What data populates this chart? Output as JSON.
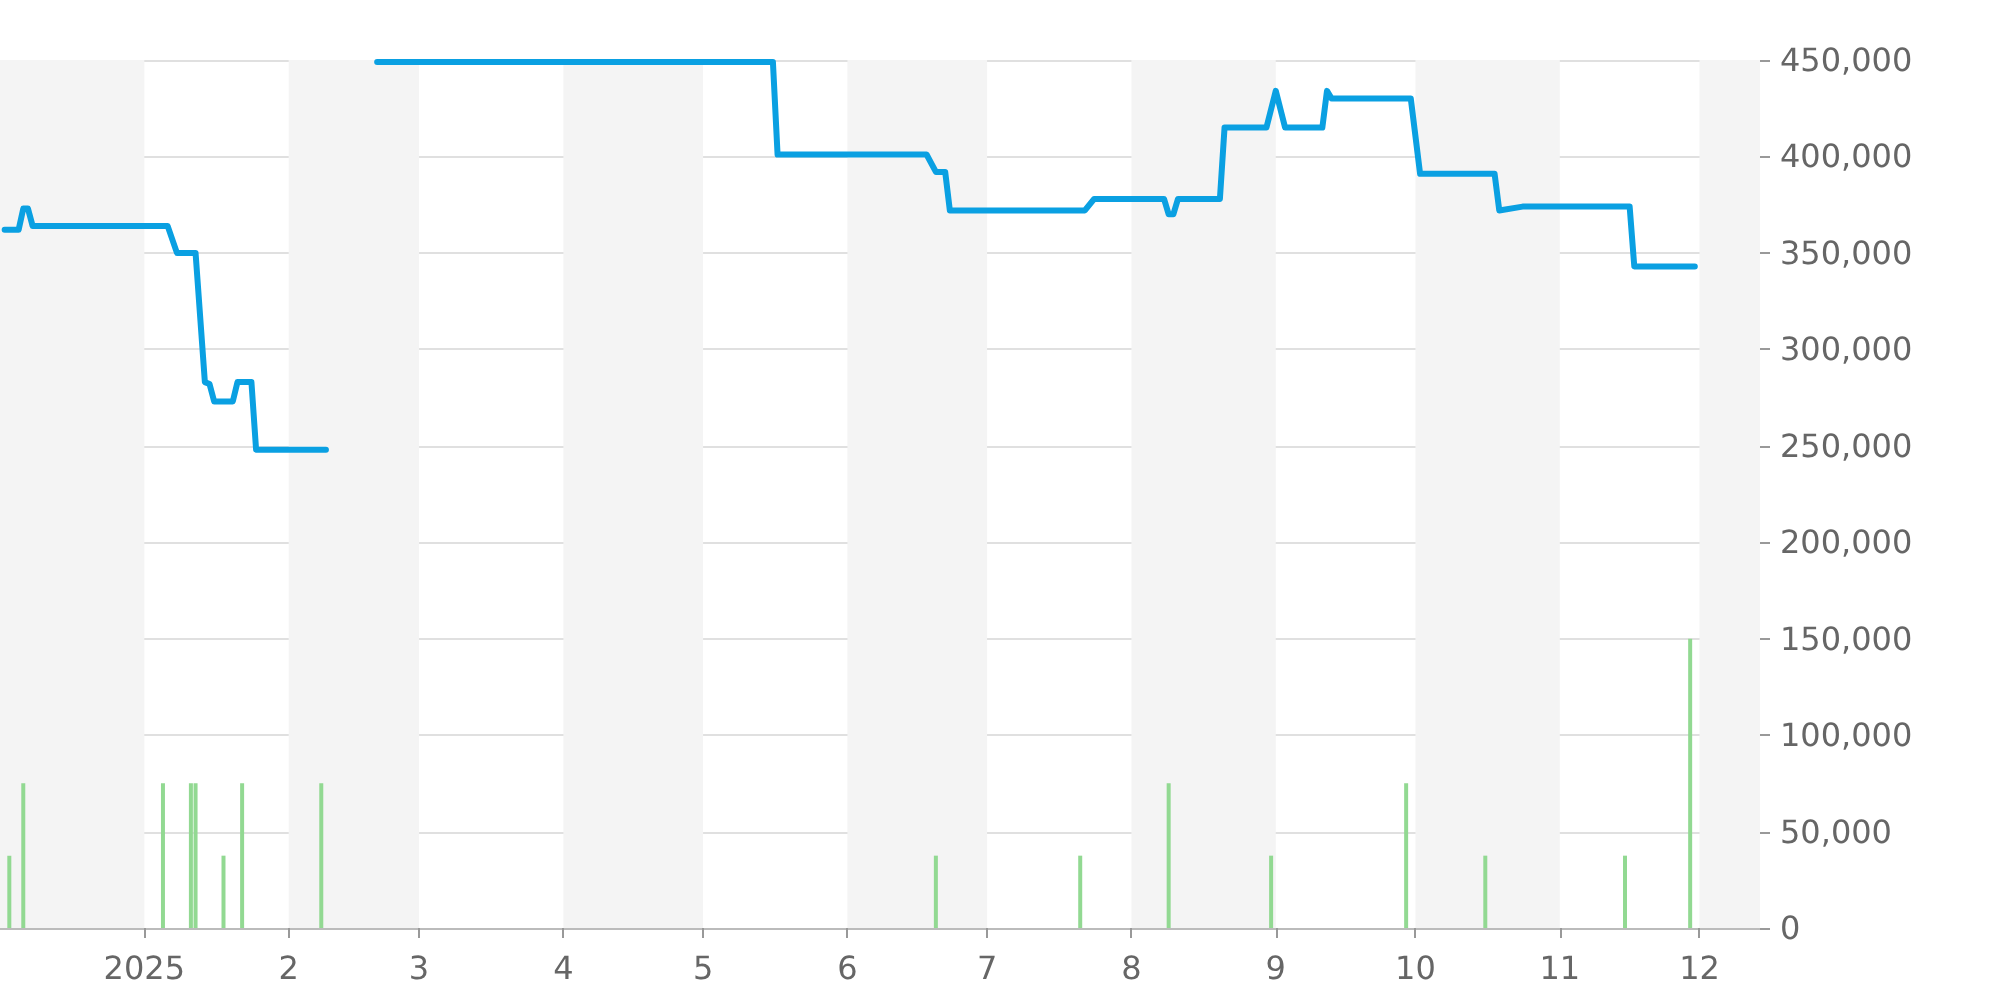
{
  "chart_data": {
    "type": "line",
    "xlim": [
      "2024-12-01",
      "2025-12-14"
    ],
    "xticks": [
      {
        "value": "2025-01-01",
        "label": "2025"
      },
      {
        "value": "2025-02-01",
        "label": "2"
      },
      {
        "value": "2025-03-01",
        "label": "3"
      },
      {
        "value": "2025-04-01",
        "label": "4"
      },
      {
        "value": "2025-05-01",
        "label": "5"
      },
      {
        "value": "2025-06-01",
        "label": "6"
      },
      {
        "value": "2025-07-01",
        "label": "7"
      },
      {
        "value": "2025-08-01",
        "label": "8"
      },
      {
        "value": "2025-09-01",
        "label": "9"
      },
      {
        "value": "2025-10-01",
        "label": "10"
      },
      {
        "value": "2025-11-01",
        "label": "11"
      },
      {
        "value": "2025-12-01",
        "label": "12"
      }
    ],
    "ylim": [
      0,
      450000
    ],
    "yticks": [
      {
        "value": 0,
        "label": "0"
      },
      {
        "value": 50000,
        "label": "50,000"
      },
      {
        "value": 100000,
        "label": "100,000"
      },
      {
        "value": 150000,
        "label": "150,000"
      },
      {
        "value": 200000,
        "label": "200,000"
      },
      {
        "value": 250000,
        "label": "250,000"
      },
      {
        "value": 300000,
        "label": "300,000"
      },
      {
        "value": 350000,
        "label": "350,000"
      },
      {
        "value": 400000,
        "label": "400,000"
      },
      {
        "value": 450000,
        "label": "450,000"
      }
    ],
    "grid": "y",
    "marker": "none",
    "line_style": "solid",
    "series": [
      {
        "color": "#0aa0e2",
        "x": [
          "2024-12-02",
          "2024-12-05",
          "2024-12-06",
          "2024-12-07",
          "2024-12-08",
          "2025-01-06",
          "2025-01-08",
          "2025-01-12",
          "2025-01-14",
          "2025-01-15",
          "2025-01-16",
          "2025-01-20",
          "2025-01-21",
          "2025-01-24",
          "2025-01-25",
          "2025-02-09",
          "2025-02-15",
          "2025-02-20",
          "2025-05-16",
          "2025-05-17",
          "2025-06-18",
          "2025-06-20",
          "2025-06-22",
          "2025-06-23",
          "2025-07-22",
          "2025-07-24",
          "2025-08-08",
          "2025-08-09",
          "2025-08-10",
          "2025-08-11",
          "2025-08-20",
          "2025-08-21",
          "2025-08-30",
          "2025-09-01",
          "2025-09-03",
          "2025-09-11",
          "2025-09-12",
          "2025-09-13",
          "2025-09-30",
          "2025-10-02",
          "2025-10-18",
          "2025-10-19",
          "2025-10-24",
          "2025-11-16",
          "2025-11-17",
          "2025-11-30"
        ],
        "values": [
          362000,
          362000,
          373000,
          373000,
          364000,
          364000,
          350000,
          350000,
          283000,
          282000,
          273000,
          273000,
          283000,
          283000,
          248000,
          248000,
          null,
          449000,
          449000,
          401000,
          401000,
          392000,
          392000,
          372000,
          372000,
          378000,
          378000,
          370000,
          370000,
          378000,
          378000,
          415000,
          415000,
          434000,
          415000,
          415000,
          434000,
          430000,
          430000,
          391000,
          391000,
          372000,
          374000,
          374000,
          343000,
          343000
        ]
      },
      {
        "type": "bar",
        "color": "#92d992",
        "x": [
          "2024-12-03",
          "2024-12-06",
          "2025-01-05",
          "2025-01-11",
          "2025-01-12",
          "2025-01-18",
          "2025-01-22",
          "2025-02-08",
          "2025-06-20",
          "2025-07-21",
          "2025-08-09",
          "2025-08-31",
          "2025-09-29",
          "2025-10-16",
          "2025-11-15",
          "2025-11-29"
        ],
        "values": [
          37500,
          75000,
          75000,
          75000,
          75000,
          37500,
          75000,
          75000,
          37500,
          37500,
          75000,
          37500,
          75000,
          37500,
          37500,
          150000
        ]
      }
    ],
    "bands": [
      {
        "axis": "x",
        "from": "2024-12-01",
        "to": "2025-01-01",
        "color": "#f4f4f4"
      },
      {
        "axis": "x",
        "from": "2025-02-01",
        "to": "2025-03-01",
        "color": "#f4f4f4"
      },
      {
        "axis": "x",
        "from": "2025-04-01",
        "to": "2025-05-01",
        "color": "#f4f4f4"
      },
      {
        "axis": "x",
        "from": "2025-06-01",
        "to": "2025-07-01",
        "color": "#f4f4f4"
      },
      {
        "axis": "x",
        "from": "2025-08-01",
        "to": "2025-09-01",
        "color": "#f4f4f4"
      },
      {
        "axis": "x",
        "from": "2025-10-01",
        "to": "2025-11-01",
        "color": "#f4f4f4"
      },
      {
        "axis": "x",
        "from": "2025-12-01",
        "to": "2025-12-14",
        "color": "#f4f4f4"
      }
    ]
  }
}
